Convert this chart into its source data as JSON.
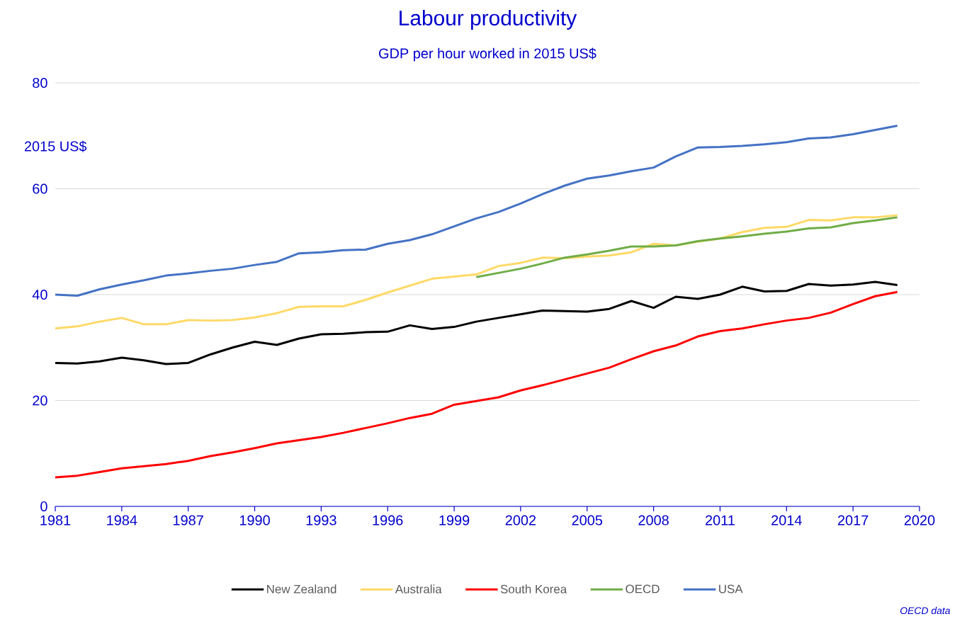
{
  "chart_data": {
    "type": "line",
    "title": "Labour productivity",
    "subtitle": "GDP per hour worked in 2015 US$",
    "ylabel": "2015 US$",
    "annotations": [
      "OECD data"
    ],
    "x": [
      1981,
      1982,
      1983,
      1984,
      1985,
      1986,
      1987,
      1988,
      1989,
      1990,
      1991,
      1992,
      1993,
      1994,
      1995,
      1996,
      1997,
      1998,
      1999,
      2000,
      2001,
      2002,
      2003,
      2004,
      2005,
      2006,
      2007,
      2008,
      2009,
      2010,
      2011,
      2012,
      2013,
      2014,
      2015,
      2016,
      2017,
      2018,
      2019
    ],
    "series": [
      {
        "name": "New Zealand",
        "color": "#000000",
        "values": [
          27.1,
          27.0,
          27.4,
          28.1,
          27.6,
          26.9,
          27.1,
          28.7,
          30.0,
          31.1,
          30.5,
          31.7,
          32.5,
          32.6,
          32.9,
          33.0,
          34.2,
          33.5,
          33.9,
          34.9,
          35.6,
          36.3,
          37.0,
          36.9,
          36.8,
          37.3,
          38.8,
          37.5,
          39.6,
          39.2,
          40.0,
          41.5,
          40.6,
          40.7,
          42.0,
          41.7,
          41.9,
          42.4,
          41.8
        ]
      },
      {
        "name": "Australia",
        "color": "#ffd966",
        "values": [
          33.6,
          34.0,
          34.9,
          35.6,
          34.4,
          34.4,
          35.2,
          35.1,
          35.2,
          35.7,
          36.5,
          37.7,
          37.8,
          37.8,
          39.0,
          40.4,
          41.7,
          43.0,
          43.4,
          43.8,
          45.4,
          46.0,
          47.0,
          46.9,
          47.2,
          47.4,
          48.0,
          49.6,
          49.3,
          50.0,
          50.6,
          51.8,
          52.6,
          52.8,
          54.1,
          54.0,
          54.6,
          54.6,
          55.0
        ]
      },
      {
        "name": "South Korea",
        "color": "#ff0000",
        "values": [
          5.5,
          5.8,
          6.5,
          7.2,
          7.6,
          8.0,
          8.6,
          9.5,
          10.2,
          11.0,
          11.9,
          12.5,
          13.1,
          13.9,
          14.8,
          15.7,
          16.7,
          17.5,
          19.2,
          19.9,
          20.6,
          21.9,
          22.9,
          24.0,
          25.1,
          26.2,
          27.8,
          29.3,
          30.4,
          32.1,
          33.1,
          33.6,
          34.4,
          35.1,
          35.6,
          36.6,
          38.2,
          39.7,
          40.5
        ]
      },
      {
        "name": "OECD",
        "color": "#70ad47",
        "values": [
          null,
          null,
          null,
          null,
          null,
          null,
          null,
          null,
          null,
          null,
          null,
          null,
          null,
          null,
          null,
          null,
          null,
          null,
          null,
          43.3,
          44.1,
          44.9,
          45.9,
          47.0,
          47.6,
          48.3,
          49.1,
          49.1,
          49.3,
          50.1,
          50.6,
          51.0,
          51.5,
          51.9,
          52.5,
          52.7,
          53.5,
          54.0,
          54.6
        ]
      },
      {
        "name": "USA",
        "color": "#4472c4",
        "values": [
          40.0,
          39.8,
          41.0,
          41.9,
          42.7,
          43.6,
          44.0,
          44.5,
          44.9,
          45.6,
          46.2,
          47.8,
          48.0,
          48.4,
          48.5,
          49.6,
          50.3,
          51.4,
          52.9,
          54.4,
          55.6,
          57.2,
          59.0,
          60.6,
          61.9,
          62.5,
          63.3,
          64.0,
          66.1,
          67.8,
          67.9,
          68.1,
          68.4,
          68.8,
          69.5,
          69.7,
          70.3,
          71.1,
          71.9
        ]
      }
    ],
    "xlim": [
      1981,
      2020
    ],
    "xticks": [
      1981,
      1984,
      1987,
      1990,
      1993,
      1996,
      1999,
      2002,
      2005,
      2008,
      2011,
      2014,
      2017,
      2020
    ],
    "ylim": [
      0,
      80
    ],
    "yticks": [
      0,
      20,
      40,
      60,
      80
    ],
    "grid": "y",
    "legend": "bottom",
    "marker": "none",
    "line_style": "solid"
  }
}
